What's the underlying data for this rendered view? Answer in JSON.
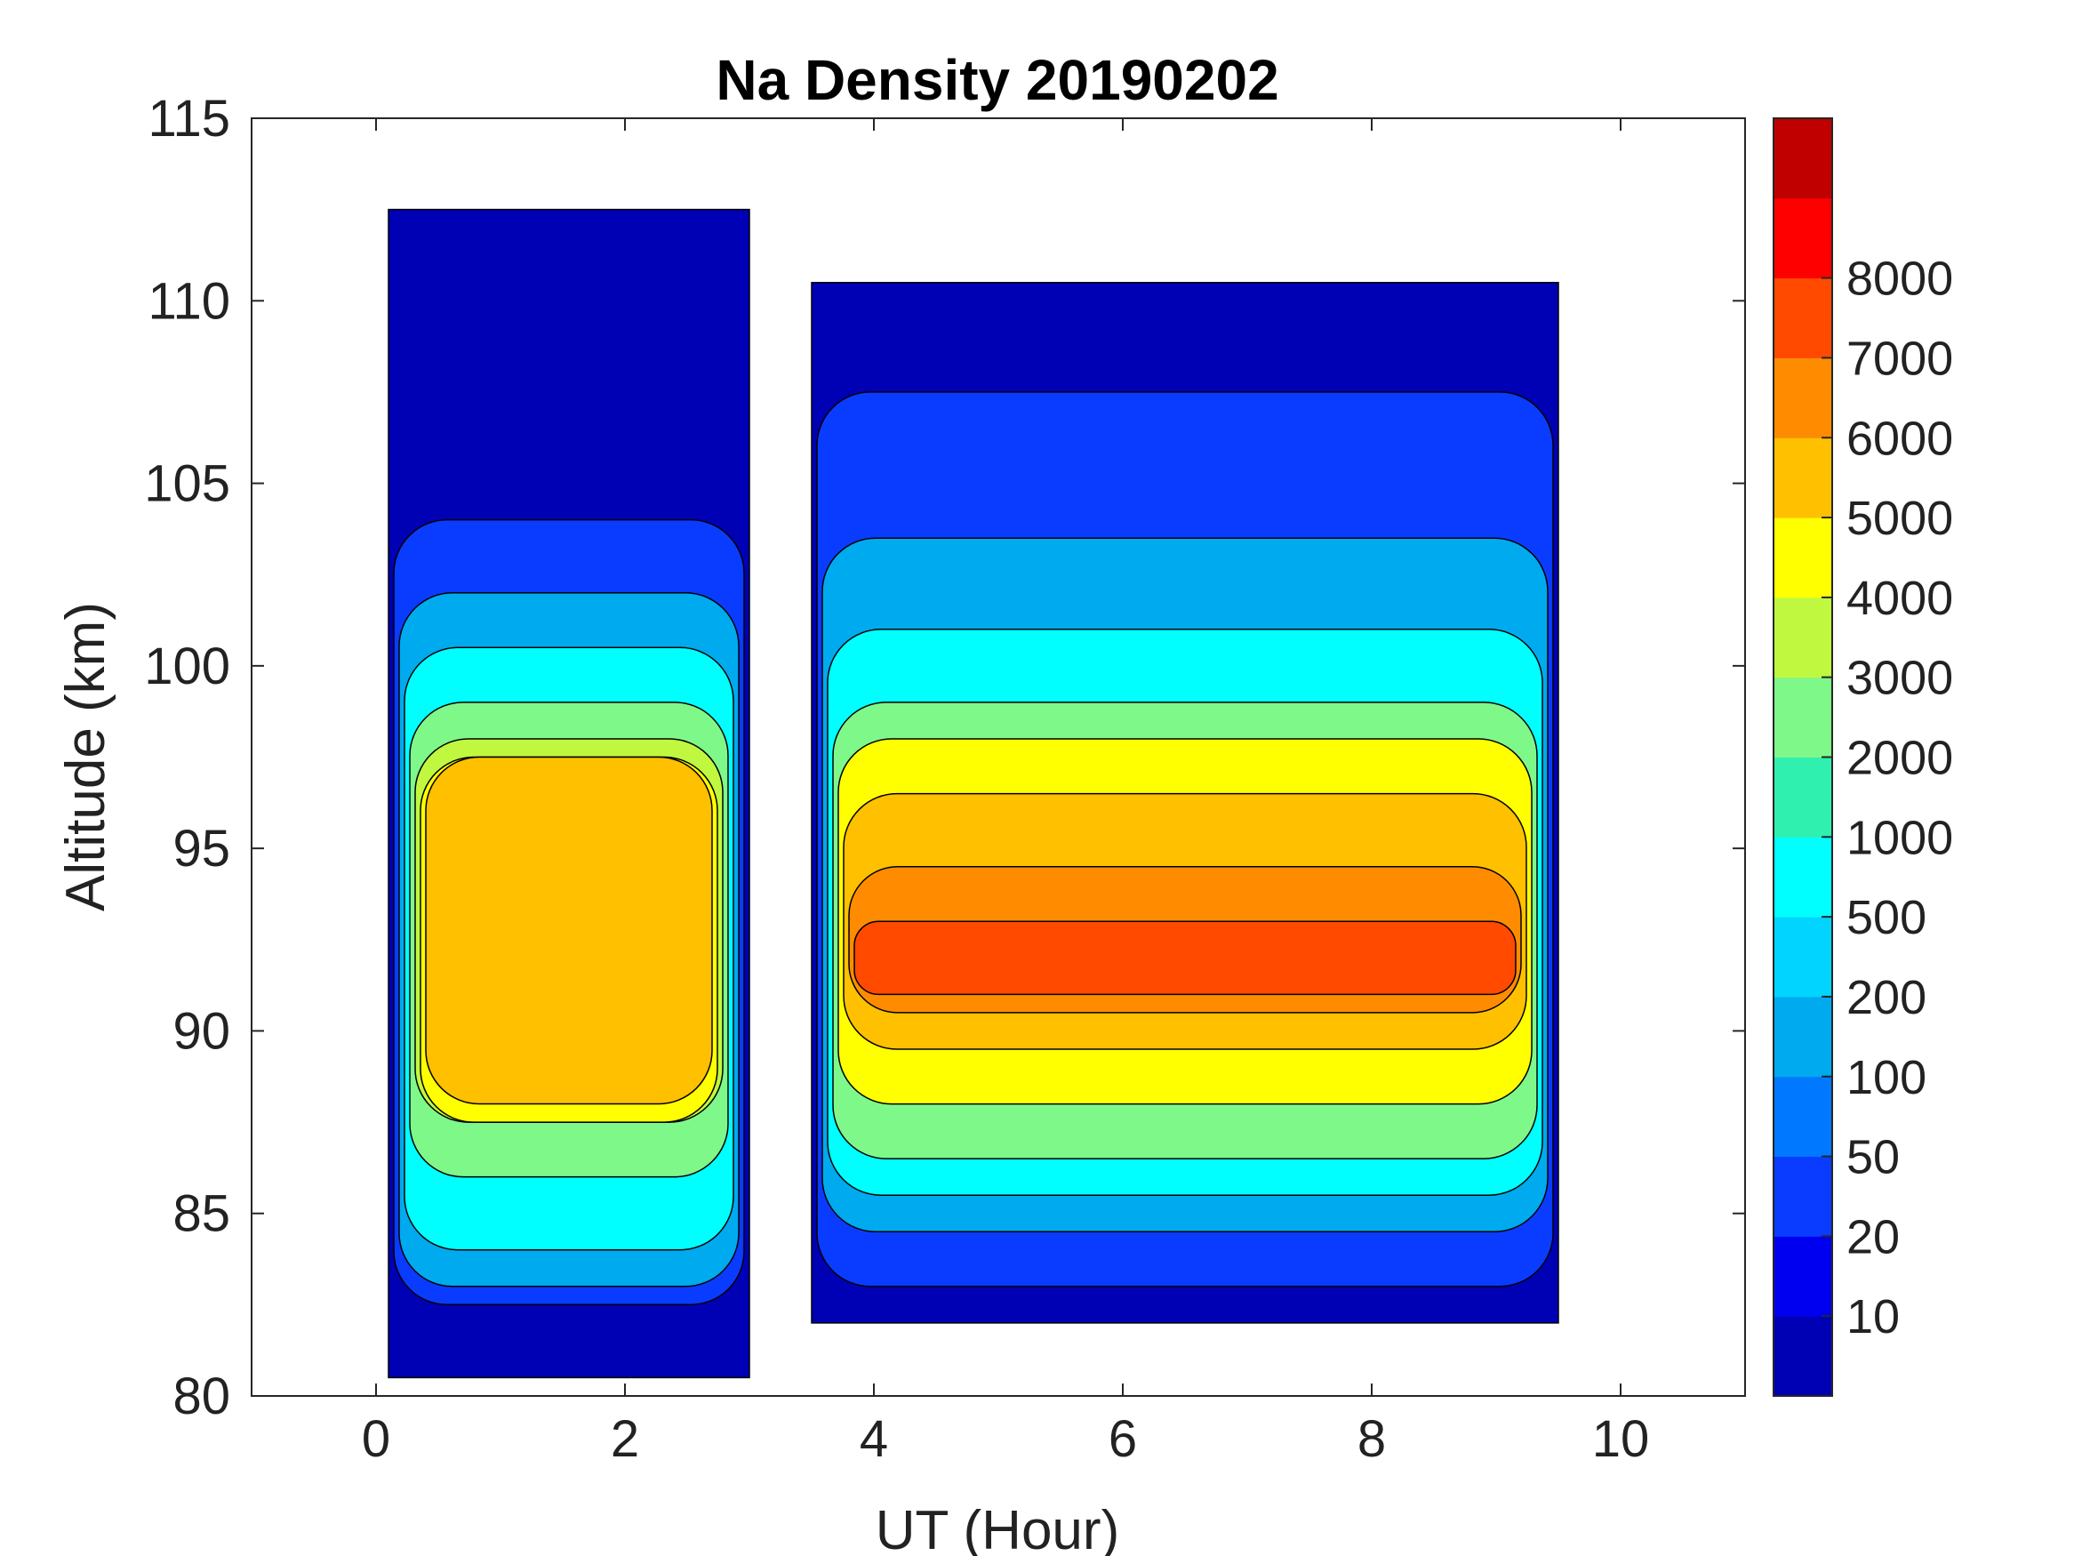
{
  "chart_data": {
    "type": "filled-contour",
    "title": "Na Density 20190202",
    "xlabel": "UT (Hour)",
    "ylabel": "Altitude (km)",
    "xlim": [
      -1,
      11
    ],
    "ylim": [
      80,
      115
    ],
    "xticks": [
      0,
      2,
      4,
      6,
      8,
      10
    ],
    "yticks": [
      80,
      85,
      90,
      95,
      100,
      105,
      110,
      115
    ],
    "colorbar": {
      "tick_labels": [
        "10",
        "20",
        "50",
        "100",
        "200",
        "500",
        "1000",
        "2000",
        "3000",
        "4000",
        "5000",
        "6000",
        "7000",
        "8000"
      ],
      "colors": [
        "#0000b4",
        "#0000f0",
        "#0a3cff",
        "#0078ff",
        "#00aaee",
        "#00d4ff",
        "#00ffff",
        "#30f0b0",
        "#7ff88a",
        "#c0f840",
        "#ffff00",
        "#ffc000",
        "#ff8c00",
        "#ff4a00",
        "#ff0000",
        "#c00000"
      ]
    },
    "data_segments": [
      {
        "ut_range": [
          0.1,
          3.0
        ],
        "layers": [
          {
            "level_index": 0,
            "altitude_range": [
              80.5,
              112.5
            ]
          },
          {
            "level_index": 2,
            "altitude_range": [
              82.5,
              104.0
            ]
          },
          {
            "level_index": 4,
            "altitude_range": [
              83.0,
              102.0
            ]
          },
          {
            "level_index": 6,
            "altitude_range": [
              84.0,
              100.5
            ]
          },
          {
            "level_index": 8,
            "altitude_range": [
              86.0,
              99.0
            ]
          },
          {
            "level_index": 9,
            "altitude_range": [
              87.5,
              98.0
            ]
          },
          {
            "level_index": 10,
            "altitude_range": [
              87.5,
              97.5
            ]
          },
          {
            "level_index": 11,
            "altitude_range": [
              88.0,
              97.5
            ]
          }
        ]
      },
      {
        "ut_range": [
          3.5,
          9.5
        ],
        "layers": [
          {
            "level_index": 0,
            "altitude_range": [
              82.0,
              110.5
            ]
          },
          {
            "level_index": 2,
            "altitude_range": [
              83.0,
              107.5
            ]
          },
          {
            "level_index": 4,
            "altitude_range": [
              84.5,
              103.5
            ]
          },
          {
            "level_index": 6,
            "altitude_range": [
              85.5,
              101.0
            ]
          },
          {
            "level_index": 8,
            "altitude_range": [
              86.5,
              99.0
            ]
          },
          {
            "level_index": 10,
            "altitude_range": [
              88.0,
              98.0
            ]
          },
          {
            "level_index": 11,
            "altitude_range": [
              89.5,
              96.5
            ]
          },
          {
            "level_index": 12,
            "altitude_range": [
              90.5,
              94.5
            ]
          },
          {
            "level_index": 13,
            "altitude_range": [
              91.0,
              93.0
            ]
          }
        ]
      }
    ]
  }
}
